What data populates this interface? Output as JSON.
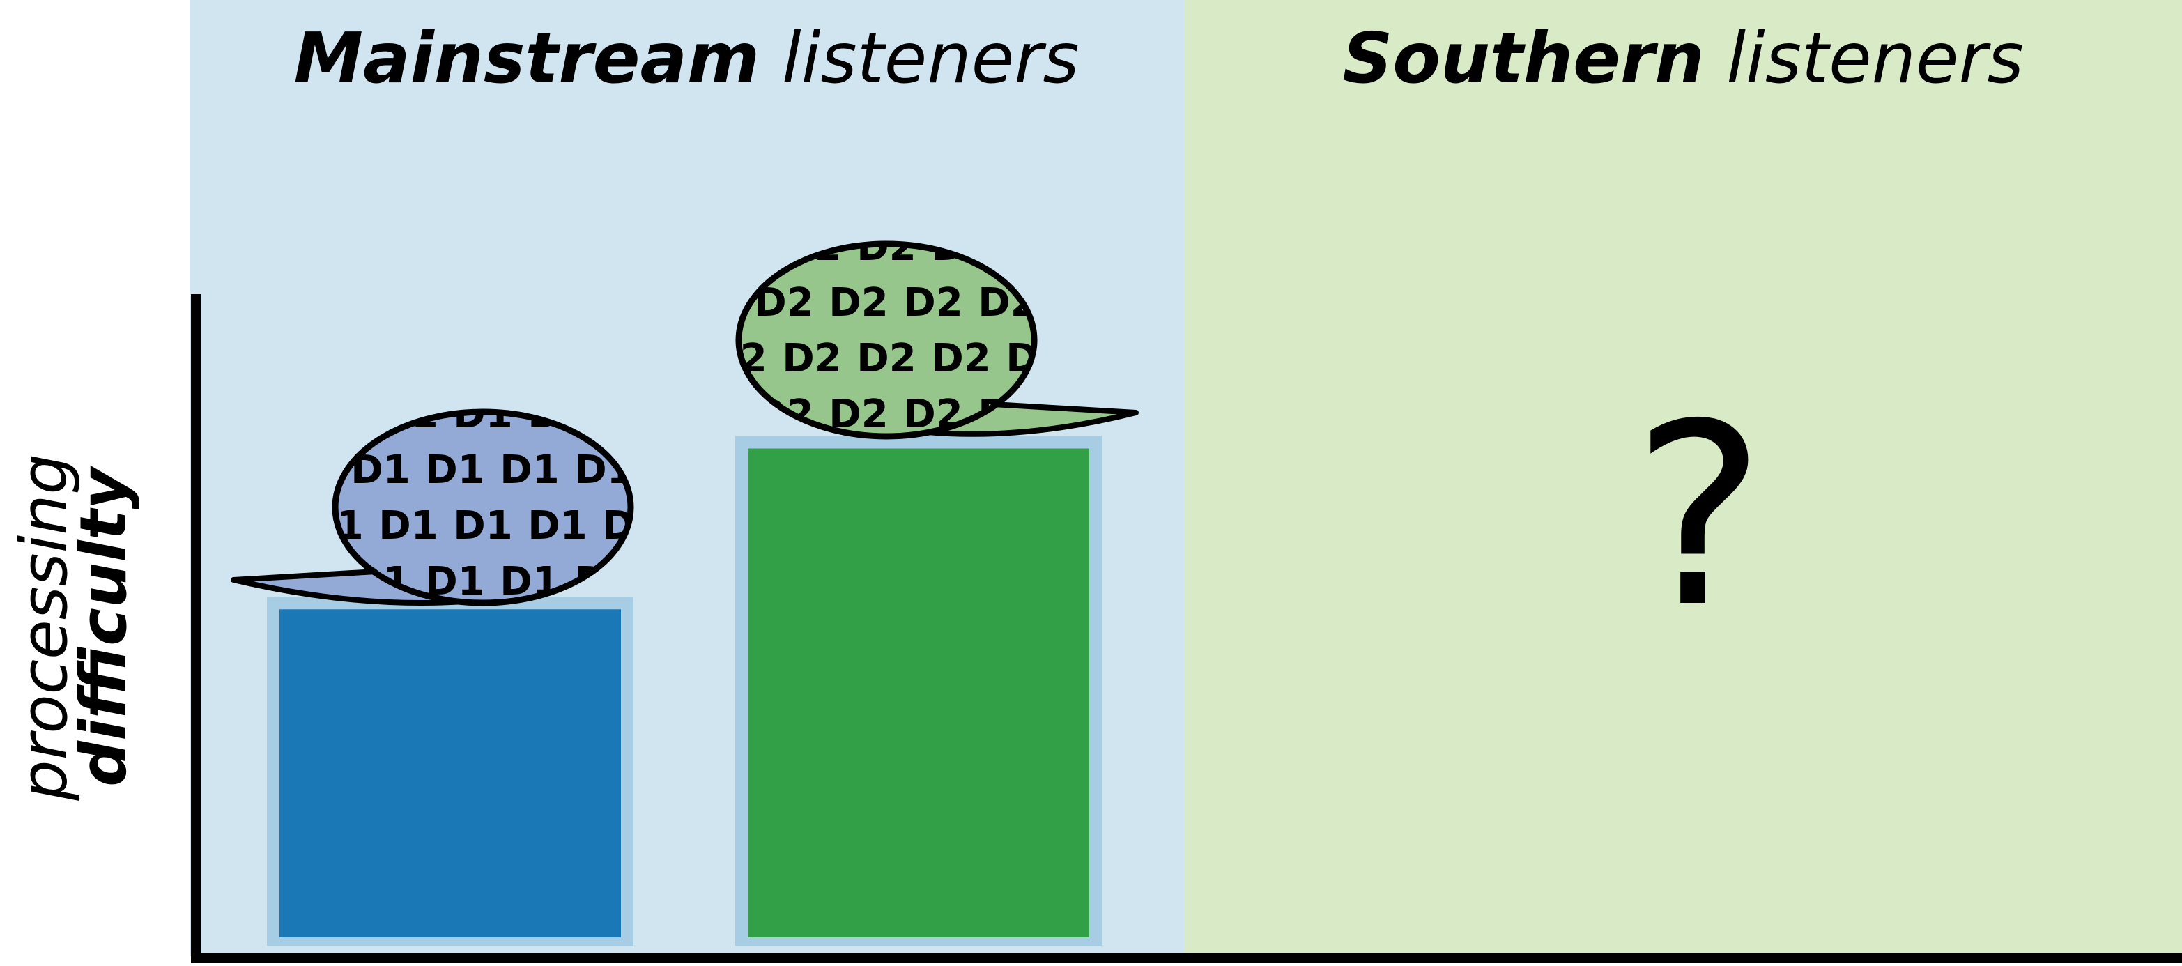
{
  "colors": {
    "mainstream_panel": "#d1e5f1",
    "southern_panel": "#d8eac6",
    "axis": "#000000",
    "bar_d1": "#1a78b6",
    "bar_d2": "#32a046",
    "bar_halo": "#a6cde4",
    "bubble_d1": "#93aad6",
    "bubble_d2": "#96c68c"
  },
  "panels": [
    {
      "title_bold": "Mainstream",
      "title_rest": " listeners"
    },
    {
      "title_bold": "Southern",
      "title_rest": " listeners",
      "placeholder": "?"
    }
  ],
  "y_axis": {
    "label_light": "processing",
    "label_bold": "difficulty"
  },
  "chart_data": {
    "type": "bar",
    "categories": [
      "D1",
      "D2"
    ],
    "series": [
      {
        "values": [
          0.51,
          0.76
        ]
      }
    ],
    "ylim": [
      0,
      1
    ],
    "grid": false,
    "axis_tick_labels": false,
    "bubble_text": {
      "D1": "D1",
      "D2": "D2"
    }
  }
}
